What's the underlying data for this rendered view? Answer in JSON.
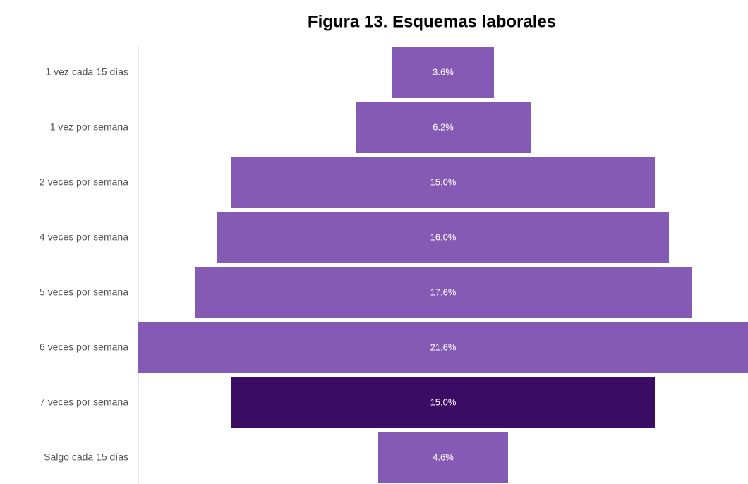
{
  "chart_data": {
    "type": "funnel",
    "title": "Figura 13. Esquemas laborales",
    "categories": [
      "1 vez cada 15 días",
      "1 vez por semana",
      "2 veces por semana",
      "4 veces por semana",
      "5 veces por semana",
      "6 veces por semana",
      "7 veces por semana",
      "Salgo cada 15 días"
    ],
    "values": [
      3.6,
      6.2,
      15.0,
      16.0,
      17.6,
      21.6,
      15.0,
      4.6
    ],
    "value_labels": [
      "3.6%",
      "6.2%",
      "15.0%",
      "16.0%",
      "17.6%",
      "21.6%",
      "15.0%",
      "4.6%"
    ],
    "colors": [
      "#845ab4",
      "#845ab4",
      "#845ab4",
      "#845ab4",
      "#845ab4",
      "#845ab4",
      "#3b0c64",
      "#845ab4"
    ]
  }
}
